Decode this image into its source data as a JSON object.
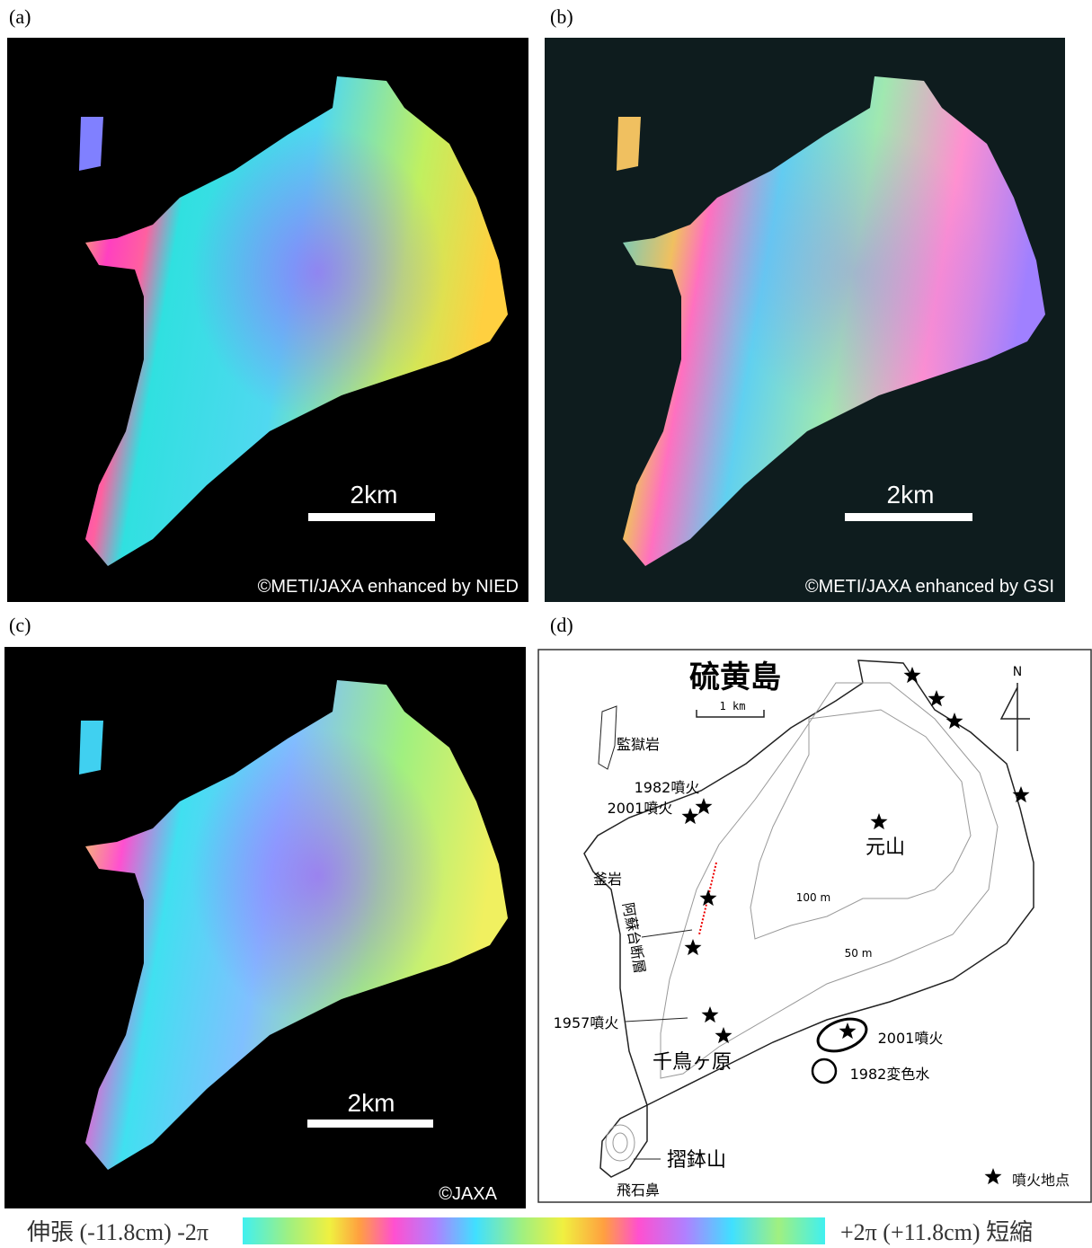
{
  "panels": [
    {
      "label": "(a)",
      "scale_bar": "2km",
      "credit": "©METI/JAXA enhanced by NIED"
    },
    {
      "label": "(b)",
      "scale_bar": "2km",
      "credit": "©METI/JAXA enhanced by GSI"
    },
    {
      "label": "(c)",
      "scale_bar": "2km",
      "credit": "©JAXA"
    }
  ],
  "map": {
    "label": "(d)",
    "title": "硫黄島",
    "scale": "1 km",
    "north": "N",
    "labels": [
      "監獄岩",
      "1982噴火",
      "2001噴火",
      "元山",
      "釜岩",
      "100 m",
      "阿蘇台断層",
      "50 m",
      "1957噴火",
      "2001噴火",
      "千鳥ヶ原",
      "1982変色水",
      "摺鉢山",
      "飛石鼻"
    ],
    "legend": "噴火地点"
  },
  "colorbar": {
    "left": "伸張 (-11.8cm) -2π",
    "right": "+2π (+11.8cm) 短縮"
  }
}
